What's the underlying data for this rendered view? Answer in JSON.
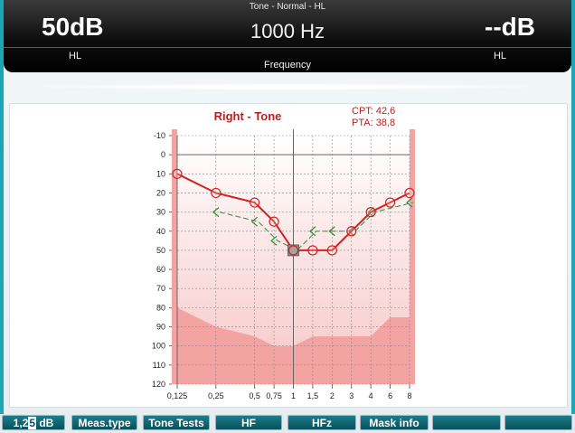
{
  "header": {
    "title": "Tone - Normal - HL",
    "left_value": "50dB",
    "left_unit": "HL",
    "center_value": "1000 Hz",
    "center_label": "Frequency",
    "right_value": "--dB",
    "right_unit": "HL"
  },
  "toolbar": {
    "step_prefix": "1,2",
    "step_cursor": "5",
    "step_suffix": " dB",
    "meas_type": "Meas.type",
    "tone_tests": "Tone Tests",
    "hf": "HF",
    "hfz": "HFz",
    "mask_info": "Mask info",
    "empty_1": "",
    "empty_2": ""
  },
  "chart_data": {
    "type": "line",
    "title": "Right - Tone",
    "cpt": "CPT: 42,6",
    "pta": "PTA: 38,8",
    "x_tick_labels": [
      "0,125",
      "0,25",
      "0,5",
      "0,75",
      "1",
      "1,5",
      "2",
      "3",
      "4",
      "6",
      "8"
    ],
    "y_tick_labels": [
      "-10",
      "0",
      "10",
      "20",
      "30",
      "40",
      "50",
      "60",
      "70",
      "80",
      "90",
      "100",
      "110",
      "120"
    ],
    "ylim": [
      -10,
      120
    ],
    "y_inverted": true,
    "grid": true,
    "colors": {
      "air": "#d42020",
      "bone": "#2e8b3a",
      "shade": "#f4a3a3",
      "background_gradient_top": "#ffffff",
      "background_gradient_bottom": "#f7c6c6"
    },
    "series": [
      {
        "marker": "circle",
        "x": [
          "0,125",
          "0,25",
          "0,5",
          "0,75",
          "1",
          "1,5",
          "2",
          "3",
          "4",
          "6",
          "8"
        ],
        "values": [
          10,
          20,
          25,
          35,
          50,
          50,
          50,
          40,
          30,
          25,
          20
        ]
      },
      {
        "marker": "bracket-left",
        "x": [
          "0,25",
          "0,5",
          "0,75",
          "1",
          "1,5",
          "2",
          "3",
          "4",
          "8"
        ],
        "values": [
          30,
          35,
          45,
          50,
          40,
          40,
          40,
          30,
          25
        ]
      }
    ],
    "highlight_x": "1",
    "selected_point": {
      "x": "1",
      "y": 50
    },
    "floor_area": {
      "x": [
        "0,125",
        "0,25",
        "0,5",
        "0,75",
        "1",
        "1,5",
        "2",
        "3",
        "4",
        "6",
        "8"
      ],
      "values": [
        80,
        90,
        95,
        100,
        100,
        95,
        95,
        95,
        95,
        85,
        85
      ]
    }
  }
}
